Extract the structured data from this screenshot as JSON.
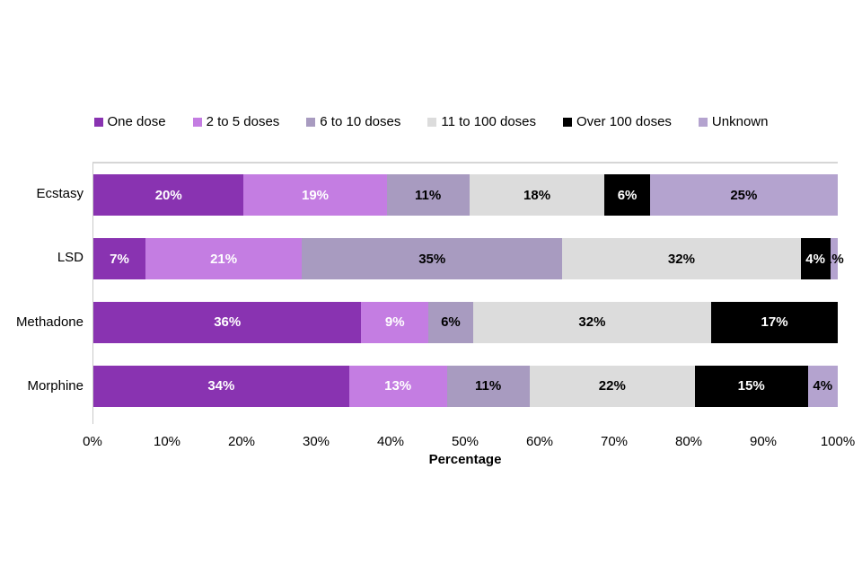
{
  "colors": {
    "one_dose": "#8933b1",
    "two_to_five_doses": "#c47de2",
    "six_to_ten_doses": "#a89bc0",
    "eleven_to_hundred_doses": "#dcdcdc",
    "over_hundred_doses": "#000000",
    "unknown": "#b4a3cf",
    "axis_line": "#c9c9c9",
    "plot_top_border": "#d6d6d6",
    "text": "#000000",
    "background": "#ffffff"
  },
  "chart_data": {
    "type": "bar",
    "orientation": "horizontal",
    "stacked": true,
    "grid": false,
    "legend_position": "top",
    "title": "",
    "xlabel": "Percentage",
    "ylabel": "",
    "xlim": [
      0,
      100
    ],
    "x_ticks": [
      "0%",
      "10%",
      "20%",
      "30%",
      "40%",
      "50%",
      "60%",
      "70%",
      "80%",
      "90%",
      "100%"
    ],
    "categories": [
      "Ecstasy",
      "LSD",
      "Methadone",
      "Morphine"
    ],
    "series": [
      {
        "name": "One dose",
        "color": "#8933b1",
        "label_color": "#ffffff",
        "values": [
          20,
          7,
          36,
          34
        ]
      },
      {
        "name": "2 to 5 doses",
        "color": "#c47de2",
        "label_color": "#ffffff",
        "values": [
          19,
          21,
          9,
          13
        ]
      },
      {
        "name": "6 to 10 doses",
        "color": "#a89bc0",
        "label_color": "#000000",
        "values": [
          11,
          35,
          6,
          11
        ]
      },
      {
        "name": "11 to 100 doses",
        "color": "#dcdcdc",
        "label_color": "#000000",
        "values": [
          18,
          32,
          32,
          22
        ]
      },
      {
        "name": "Over 100 doses",
        "color": "#000000",
        "label_color": "#ffffff",
        "values": [
          6,
          4,
          17,
          15
        ]
      },
      {
        "name": "Unknown",
        "color": "#b4a3cf",
        "label_color": "#000000",
        "values": [
          25,
          1,
          0,
          4
        ]
      }
    ],
    "data_label_format": "{value}%"
  }
}
